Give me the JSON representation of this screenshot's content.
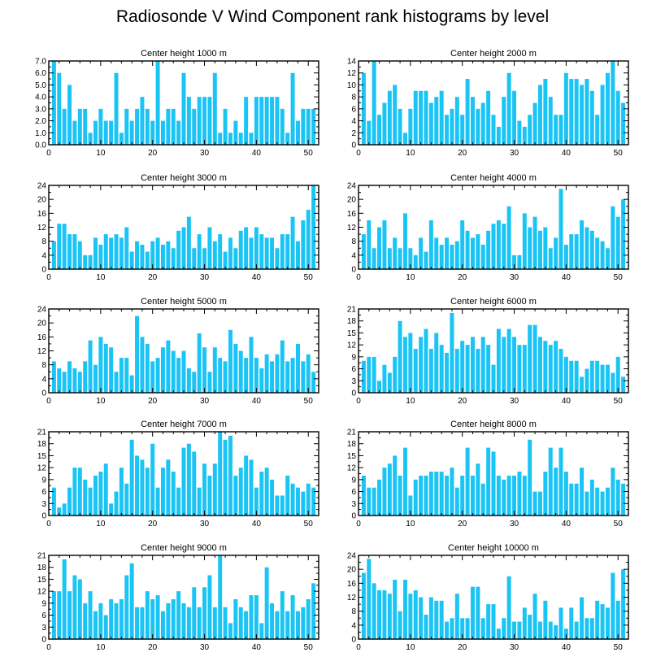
{
  "chart_data": {
    "type": "bar",
    "title": "Radiosonde V Wind Component rank histograms by level",
    "bar_color": "#1ac4f5",
    "xlim": [
      0,
      52
    ],
    "x_ticks": [
      0,
      10,
      20,
      30,
      40,
      50
    ],
    "x_tick_labels": [
      "0",
      "10",
      "20",
      "30",
      "40",
      "50"
    ],
    "panels": [
      {
        "title": "Center height 1000 m",
        "ylim": [
          0,
          7
        ],
        "y_ticks": [
          0,
          1,
          2,
          3,
          4,
          5,
          6,
          7
        ],
        "y_tick_labels": [
          "0.0",
          "1.0",
          "2.0",
          "3.0",
          "4.0",
          "5.0",
          "6.0",
          "7.0"
        ],
        "values": [
          7,
          6,
          3,
          5,
          2,
          3,
          3,
          1,
          2,
          3,
          2,
          2,
          6,
          1,
          3,
          2,
          3,
          4,
          3,
          2,
          7,
          2,
          3,
          3,
          2,
          6,
          4,
          3,
          4,
          4,
          4,
          6,
          1,
          3,
          1,
          2,
          1,
          4,
          1,
          4,
          4,
          4,
          4,
          4,
          3,
          1,
          6,
          2,
          3,
          3,
          3
        ]
      },
      {
        "title": "Center height 2000 m",
        "ylim": [
          0,
          14
        ],
        "y_ticks": [
          0,
          2,
          4,
          6,
          8,
          10,
          12,
          14
        ],
        "y_tick_labels": [
          "0",
          "2",
          "4",
          "6",
          "8",
          "10",
          "12",
          "14"
        ],
        "values": [
          12,
          4,
          14,
          5,
          7,
          9,
          10,
          6,
          2,
          6,
          9,
          9,
          9,
          7,
          8,
          9,
          5,
          6,
          8,
          5,
          11,
          8,
          6,
          7,
          9,
          5,
          3,
          8,
          12,
          9,
          4,
          3,
          5,
          7,
          10,
          11,
          8,
          5,
          5,
          12,
          11,
          11,
          10,
          11,
          9,
          5,
          10,
          12,
          14,
          9,
          7
        ]
      },
      {
        "title": "Center height 3000 m",
        "ylim": [
          0,
          24
        ],
        "y_ticks": [
          0,
          4,
          8,
          12,
          16,
          20,
          24
        ],
        "y_tick_labels": [
          "0",
          "4",
          "8",
          "12",
          "16",
          "20",
          "24"
        ],
        "values": [
          8,
          13,
          13,
          10,
          10,
          8,
          4,
          4,
          9,
          7,
          10,
          9,
          10,
          9,
          12,
          5,
          8,
          7,
          5,
          8,
          9,
          7,
          8,
          6,
          11,
          12,
          15,
          6,
          10,
          6,
          12,
          8,
          10,
          5,
          9,
          6,
          11,
          12,
          9,
          12,
          10,
          9,
          9,
          6,
          10,
          10,
          15,
          8,
          14,
          17,
          24
        ]
      },
      {
        "title": "Center height 4000 m",
        "ylim": [
          0,
          24
        ],
        "y_ticks": [
          0,
          4,
          8,
          12,
          16,
          20,
          24
        ],
        "y_tick_labels": [
          "0",
          "4",
          "8",
          "12",
          "16",
          "20",
          "24"
        ],
        "values": [
          10,
          14,
          6,
          12,
          14,
          6,
          9,
          6,
          16,
          6,
          4,
          9,
          5,
          14,
          9,
          7,
          9,
          7,
          8,
          14,
          11,
          9,
          10,
          7,
          11,
          13,
          14,
          13,
          18,
          4,
          4,
          16,
          12,
          15,
          11,
          12,
          6,
          9,
          23,
          7,
          10,
          10,
          14,
          12,
          11,
          9,
          8,
          6,
          18,
          15,
          20
        ]
      },
      {
        "title": "Center height 5000 m",
        "ylim": [
          0,
          24
        ],
        "y_ticks": [
          0,
          4,
          8,
          12,
          16,
          20,
          24
        ],
        "y_tick_labels": [
          "0",
          "4",
          "8",
          "12",
          "16",
          "20",
          "24"
        ],
        "values": [
          9,
          7,
          6,
          9,
          7,
          6,
          9,
          15,
          8,
          16,
          14,
          13,
          6,
          10,
          10,
          5,
          22,
          16,
          14,
          9,
          10,
          13,
          15,
          12,
          10,
          12,
          7,
          6,
          17,
          13,
          6,
          13,
          10,
          9,
          18,
          14,
          12,
          10,
          16,
          10,
          7,
          11,
          9,
          11,
          15,
          9,
          10,
          14,
          9,
          11,
          6
        ]
      },
      {
        "title": "Center height 6000 m",
        "ylim": [
          0,
          21
        ],
        "y_ticks": [
          0,
          3,
          6,
          9,
          12,
          15,
          18,
          21
        ],
        "y_tick_labels": [
          "0",
          "3",
          "6",
          "9",
          "12",
          "15",
          "18",
          "21"
        ],
        "values": [
          8,
          9,
          9,
          3,
          7,
          5,
          9,
          18,
          14,
          15,
          11,
          14,
          16,
          11,
          15,
          12,
          10,
          20,
          11,
          13,
          12,
          14,
          11,
          14,
          12,
          7,
          16,
          14,
          16,
          14,
          12,
          12,
          17,
          17,
          14,
          13,
          12,
          13,
          11,
          9,
          8,
          8,
          4,
          6,
          8,
          8,
          7,
          7,
          5,
          9,
          4
        ]
      },
      {
        "title": "Center height 7000 m",
        "ylim": [
          0,
          21
        ],
        "y_ticks": [
          0,
          3,
          6,
          9,
          12,
          15,
          18,
          21
        ],
        "y_tick_labels": [
          "0",
          "3",
          "6",
          "9",
          "12",
          "15",
          "18",
          "21"
        ],
        "values": [
          7,
          2,
          3,
          7,
          12,
          12,
          9,
          7,
          10,
          11,
          13,
          3,
          6,
          12,
          8,
          19,
          15,
          14,
          12,
          18,
          7,
          12,
          14,
          11,
          7,
          17,
          18,
          16,
          7,
          13,
          10,
          13,
          21,
          19,
          20,
          10,
          12,
          15,
          14,
          7,
          11,
          12,
          9,
          5,
          5,
          10,
          8,
          7,
          6,
          8,
          7
        ]
      },
      {
        "title": "Center height 8000 m",
        "ylim": [
          0,
          21
        ],
        "y_ticks": [
          0,
          3,
          6,
          9,
          12,
          15,
          18,
          21
        ],
        "y_tick_labels": [
          "0",
          "3",
          "6",
          "9",
          "12",
          "15",
          "18",
          "21"
        ],
        "values": [
          10,
          7,
          7,
          9,
          12,
          13,
          15,
          10,
          17,
          5,
          9,
          10,
          10,
          11,
          11,
          11,
          10,
          12,
          7,
          10,
          17,
          10,
          13,
          8,
          17,
          16,
          10,
          9,
          10,
          10,
          11,
          10,
          19,
          6,
          6,
          11,
          17,
          12,
          17,
          11,
          8,
          8,
          12,
          6,
          9,
          7,
          6,
          7,
          12,
          9,
          8
        ]
      },
      {
        "title": "Center height 9000 m",
        "ylim": [
          0,
          21
        ],
        "y_ticks": [
          0,
          3,
          6,
          9,
          12,
          15,
          18,
          21
        ],
        "y_tick_labels": [
          "0",
          "3",
          "6",
          "9",
          "12",
          "15",
          "18",
          "21"
        ],
        "values": [
          12,
          12,
          20,
          12,
          16,
          15,
          9,
          12,
          7,
          9,
          6,
          10,
          9,
          10,
          16,
          19,
          8,
          8,
          12,
          10,
          11,
          7,
          9,
          10,
          12,
          9,
          8,
          13,
          8,
          13,
          16,
          8,
          21,
          8,
          4,
          10,
          8,
          7,
          11,
          11,
          4,
          18,
          9,
          7,
          12,
          7,
          11,
          7,
          8,
          10,
          14
        ]
      },
      {
        "title": "Center height 10000 m",
        "ylim": [
          0,
          24
        ],
        "y_ticks": [
          0,
          4,
          8,
          12,
          16,
          20,
          24
        ],
        "y_tick_labels": [
          "0",
          "4",
          "8",
          "12",
          "16",
          "20",
          "24"
        ],
        "values": [
          19,
          23,
          16,
          14,
          14,
          13,
          17,
          8,
          17,
          13,
          14,
          12,
          7,
          12,
          11,
          11,
          5,
          6,
          13,
          6,
          6,
          15,
          15,
          6,
          10,
          10,
          3,
          6,
          18,
          5,
          5,
          9,
          7,
          13,
          5,
          11,
          5,
          4,
          9,
          3,
          9,
          5,
          12,
          6,
          6,
          11,
          10,
          9,
          19,
          11,
          20
        ]
      }
    ]
  }
}
